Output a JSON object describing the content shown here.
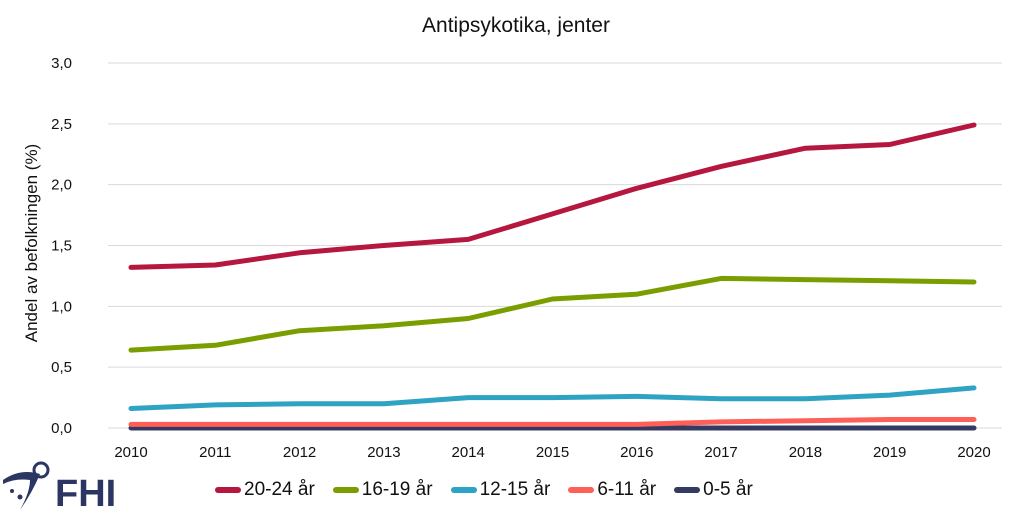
{
  "logo_text": "FHI",
  "chart_data": {
    "type": "line",
    "title": "Antipsykotika, jenter",
    "xlabel": "",
    "ylabel": "Andel av befolkningen (%)",
    "x": [
      "2010",
      "2011",
      "2012",
      "2013",
      "2014",
      "2015",
      "2016",
      "2017",
      "2018",
      "2019",
      "2020"
    ],
    "ylim": [
      0,
      3.0
    ],
    "yticks": [
      "0,0",
      "0,5",
      "1,0",
      "1,5",
      "2,0",
      "2,5",
      "3,0"
    ],
    "ytick_values": [
      0,
      0.5,
      1.0,
      1.5,
      2.0,
      2.5,
      3.0
    ],
    "grid": true,
    "legend_position": "bottom",
    "series": [
      {
        "name": "20-24 år",
        "color": "#B5173F",
        "values": [
          1.32,
          1.34,
          1.44,
          1.5,
          1.55,
          1.76,
          1.97,
          2.15,
          2.3,
          2.33,
          2.49
        ]
      },
      {
        "name": "16-19 år",
        "color": "#7A9E00",
        "values": [
          0.64,
          0.68,
          0.8,
          0.84,
          0.9,
          1.06,
          1.1,
          1.23,
          1.22,
          1.21,
          1.2
        ]
      },
      {
        "name": "12-15 år",
        "color": "#2FA3C3",
        "values": [
          0.16,
          0.19,
          0.2,
          0.2,
          0.25,
          0.25,
          0.26,
          0.24,
          0.24,
          0.27,
          0.33
        ]
      },
      {
        "name": "6-11 år",
        "color": "#FF5F57",
        "values": [
          0.03,
          0.03,
          0.03,
          0.03,
          0.03,
          0.03,
          0.03,
          0.05,
          0.06,
          0.07,
          0.07
        ]
      },
      {
        "name": "0-5 år",
        "color": "#353A60",
        "values": [
          0.0,
          0.0,
          0.0,
          0.0,
          0.0,
          0.0,
          0.0,
          0.0,
          0.0,
          0.0,
          0.0
        ]
      }
    ]
  }
}
